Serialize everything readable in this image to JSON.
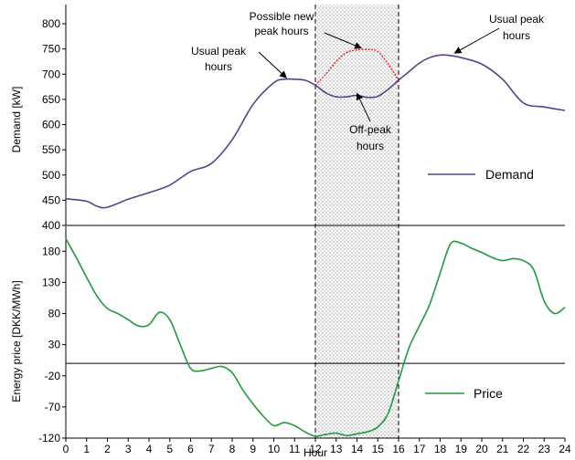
{
  "colors": {
    "demand": "#5b3f8c",
    "demand_alt": "#e8231e",
    "price": "#1f9b3a",
    "axis": "#000000",
    "window_line": "#000000",
    "hatch": "#9a9a9a"
  },
  "chart_data": [
    {
      "type": "line",
      "panel": "top",
      "ylabel": "Demand [kW]",
      "ylim": [
        400,
        820
      ],
      "yticks": [
        "400",
        "450",
        "500",
        "550",
        "600",
        "650",
        "700",
        "750",
        "800"
      ],
      "ytick_values": [
        400,
        450,
        500,
        550,
        600,
        650,
        700,
        750,
        800
      ],
      "xlim": [
        0,
        24
      ],
      "series": [
        {
          "name": "Demand",
          "x": [
            0,
            1,
            1.5,
            2,
            3,
            4,
            5,
            6,
            7,
            8,
            9,
            10,
            10.5,
            11,
            11.5,
            12,
            12.5,
            13,
            13.5,
            14,
            14.5,
            15,
            15.5,
            16,
            16.5,
            17,
            17.5,
            18,
            18.5,
            19,
            20,
            21,
            22,
            23,
            24
          ],
          "values": [
            453,
            448,
            438,
            436,
            452,
            465,
            480,
            507,
            523,
            570,
            640,
            683,
            690,
            690,
            688,
            678,
            663,
            655,
            655,
            658,
            654,
            656,
            670,
            688,
            705,
            722,
            733,
            738,
            737,
            733,
            720,
            690,
            643,
            635,
            628
          ]
        },
        {
          "name": "Possible new peak hours",
          "x": [
            12,
            12.5,
            13,
            13.5,
            14,
            14.5,
            15,
            15.5,
            16
          ],
          "values": [
            678,
            700,
            725,
            743,
            748,
            749,
            745,
            720,
            688
          ]
        }
      ],
      "legend": [
        {
          "label": "Demand",
          "position": "right"
        }
      ],
      "annotations": [
        {
          "lines": [
            "Possible new",
            "peak hours"
          ]
        },
        {
          "lines": [
            "Usual peak",
            "hours"
          ],
          "side": "left"
        },
        {
          "lines": [
            "Usual peak",
            "hours"
          ],
          "side": "right"
        },
        {
          "lines": [
            "Off-peak",
            "hours"
          ]
        }
      ]
    },
    {
      "type": "line",
      "panel": "bottom",
      "ylabel": "Energy price [DKK/MWh]",
      "xlabel": "Hour",
      "ylim": [
        -120,
        220
      ],
      "yticks": [
        "-120",
        "-70",
        "-20",
        "30",
        "80",
        "130",
        "180"
      ],
      "ytick_values": [
        -120,
        -70,
        -20,
        30,
        80,
        130,
        180
      ],
      "xticks": [
        "0",
        "1",
        "2",
        "3",
        "4",
        "5",
        "6",
        "7",
        "8",
        "9",
        "10",
        "11",
        "12",
        "13",
        "14",
        "15",
        "16",
        "17",
        "18",
        "19",
        "20",
        "21",
        "22",
        "23",
        "24"
      ],
      "xlim": [
        0,
        24
      ],
      "series": [
        {
          "name": "Price",
          "x": [
            0,
            0.5,
            1,
            1.5,
            2,
            2.5,
            3,
            3.5,
            4,
            4.5,
            5,
            5.5,
            6,
            6.5,
            7,
            7.5,
            8,
            8.5,
            9,
            9.5,
            10,
            10.5,
            11,
            11.5,
            12,
            12.5,
            13,
            13.5,
            14,
            14.5,
            15,
            15.5,
            16,
            16.5,
            17,
            17.5,
            18,
            18.5,
            19,
            19.5,
            20,
            20.5,
            21,
            21.5,
            22,
            22.5,
            23,
            23.5,
            24
          ],
          "values": [
            200,
            170,
            138,
            108,
            88,
            80,
            70,
            60,
            62,
            82,
            70,
            30,
            -8,
            -12,
            -8,
            -5,
            -15,
            -42,
            -65,
            -85,
            -100,
            -95,
            -100,
            -110,
            -117,
            -114,
            -112,
            -116,
            -113,
            -110,
            -102,
            -80,
            -28,
            25,
            60,
            95,
            145,
            192,
            193,
            185,
            178,
            170,
            165,
            168,
            165,
            150,
            100,
            80,
            90
          ]
        }
      ],
      "legend": [
        {
          "label": "Price",
          "position": "right"
        }
      ]
    }
  ]
}
